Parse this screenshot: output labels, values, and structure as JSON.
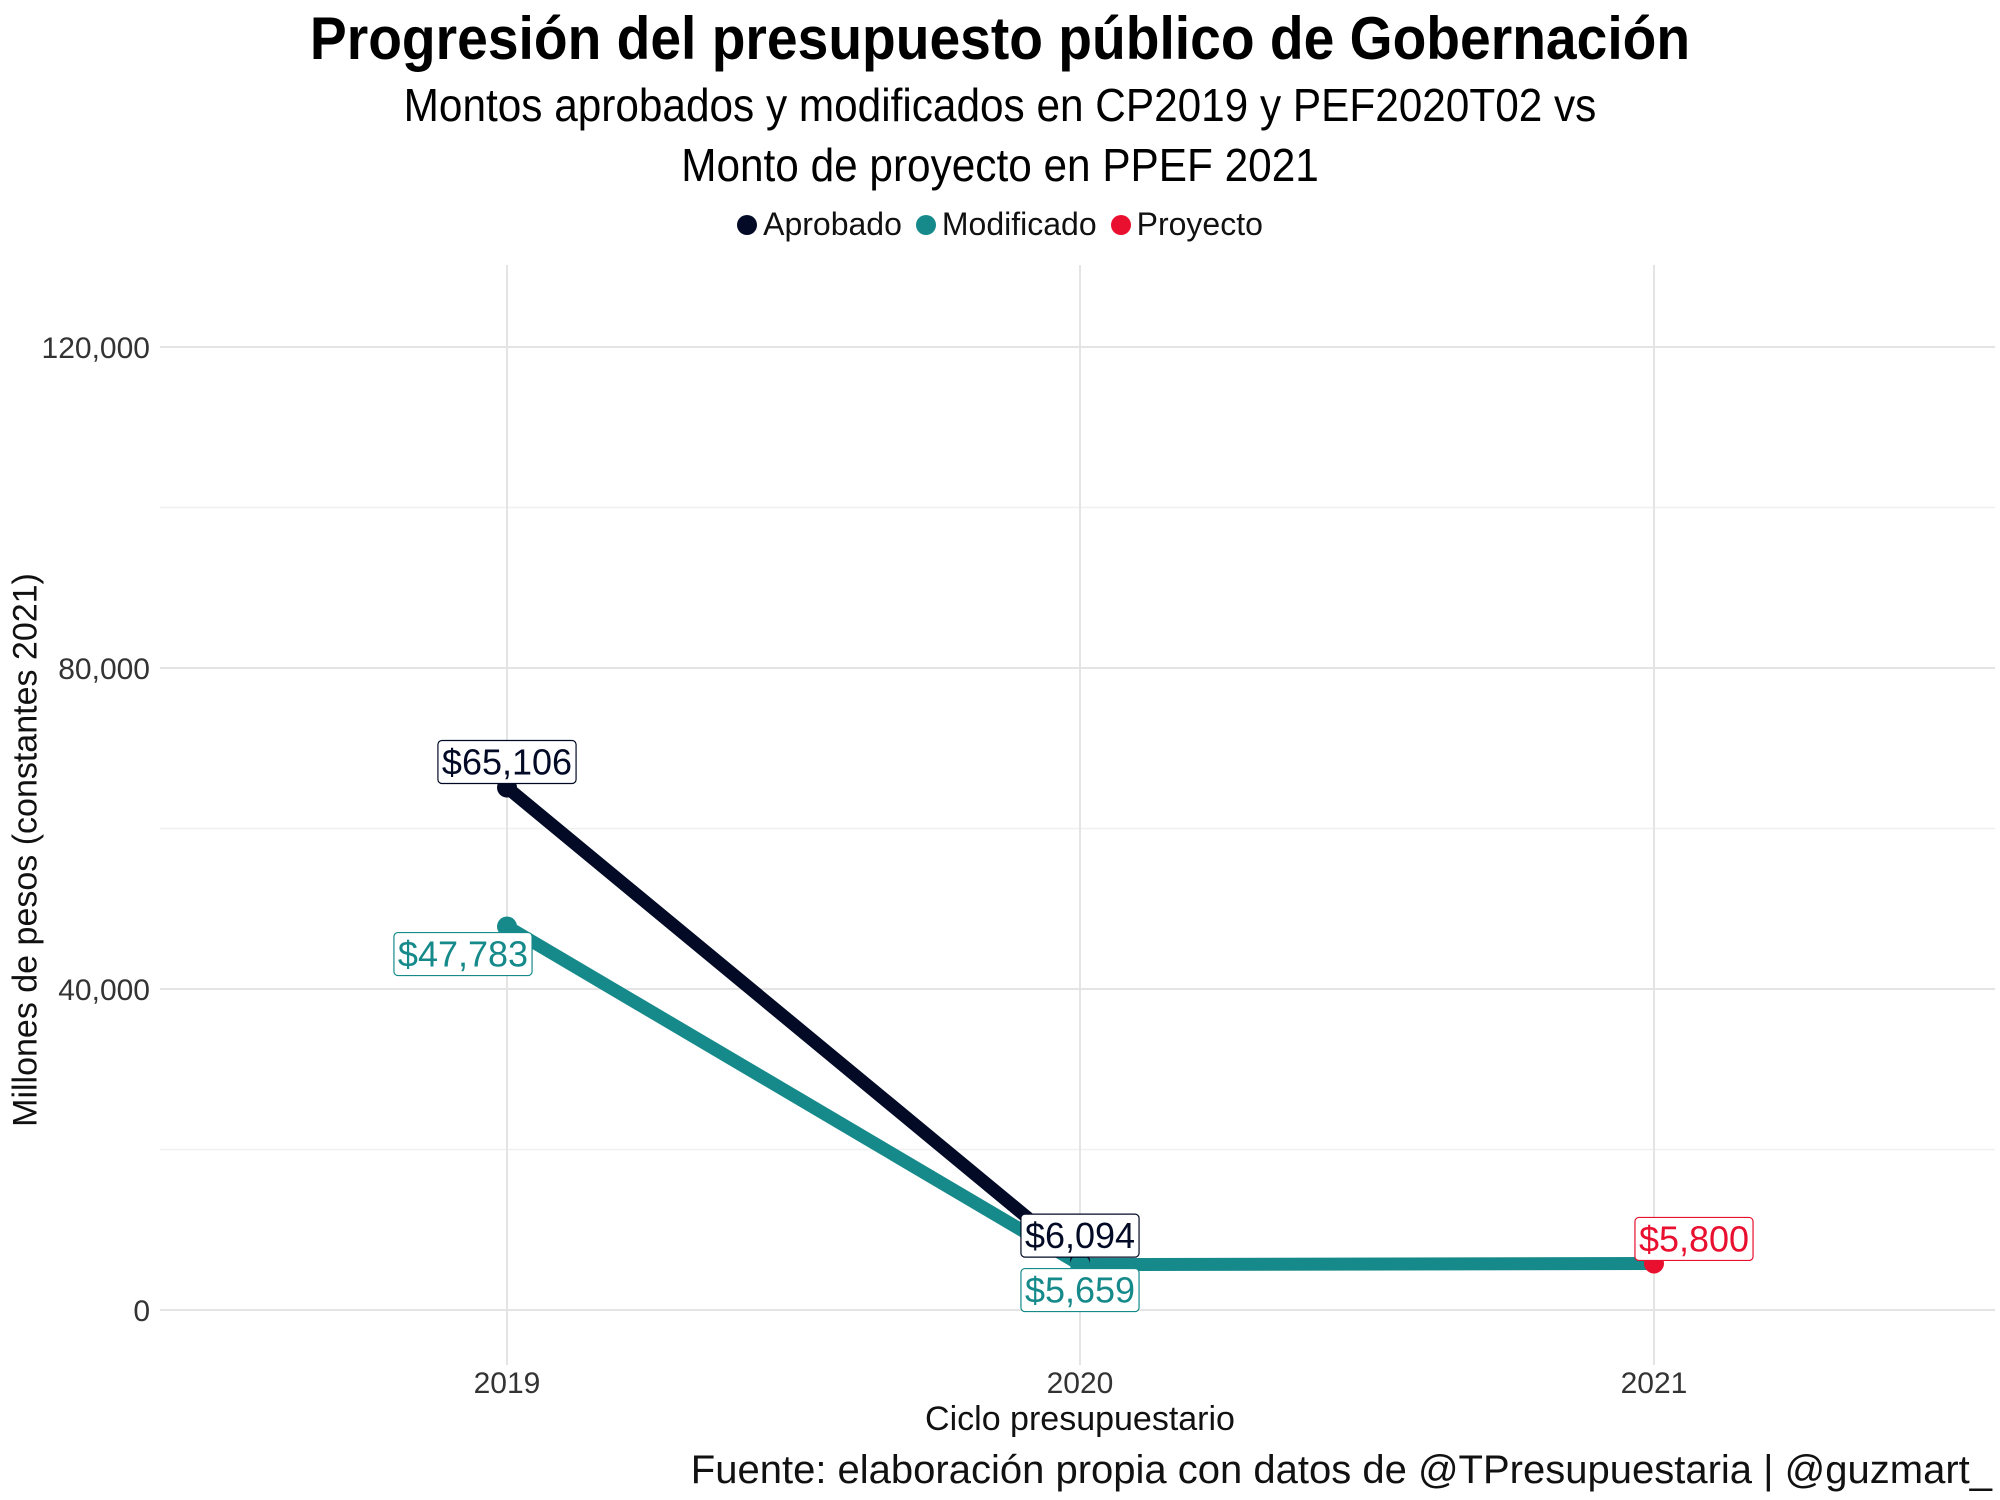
{
  "title": "Progresión del presupuesto público de Gobernación",
  "subtitle_line1": "Montos aprobados y modificados en CP2019 y PEF2020T02 vs",
  "subtitle_line2": "Monto de proyecto en PPEF 2021",
  "caption": "Fuente: elaboración propia con datos de @TPresupuestaria | @guzmart_",
  "legend": [
    {
      "name": "Aprobado",
      "color": "#020a25"
    },
    {
      "name": "Modificado",
      "color": "#168a8a"
    },
    {
      "name": "Proyecto",
      "color": "#e8102e"
    }
  ],
  "chart_data": {
    "type": "line",
    "xlabel": "Ciclo presupuestario",
    "ylabel": "Millones de pesos (constantes 2021)",
    "x": [
      "2019",
      "2020",
      "2021"
    ],
    "ylim": [
      0,
      120000
    ],
    "yticks": [
      0,
      40000,
      80000,
      120000
    ],
    "ytick_labels": [
      "0",
      "40,000",
      "80,000",
      "120,000"
    ],
    "grid": true,
    "legend_position": "top",
    "series": [
      {
        "name": "Aprobado",
        "color": "#020a25",
        "points": [
          {
            "x": "2019",
            "y": 65106,
            "label": "$65,106"
          },
          {
            "x": "2020",
            "y": 6094,
            "label": "$6,094"
          }
        ]
      },
      {
        "name": "Modificado",
        "color": "#168a8a",
        "points": [
          {
            "x": "2019",
            "y": 47783,
            "label": "$47,783"
          },
          {
            "x": "2020",
            "y": 5659,
            "label": "$5,659"
          }
        ]
      },
      {
        "name": "Proyecto",
        "color": "#e8102e",
        "points": [
          {
            "x": "2021",
            "y": 5800,
            "label": "$5,800"
          }
        ]
      }
    ]
  }
}
